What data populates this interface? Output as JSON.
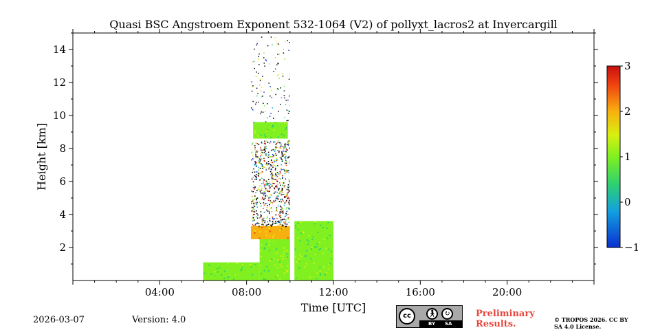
{
  "chart_data": {
    "type": "heatmap",
    "title": "Quasi BSC Angstroem Exponent 532-1064 (V2) of pollyxt_lacros2 at Invercargill",
    "xlabel": "Time [UTC]",
    "ylabel": "Height [km]",
    "xlim": [
      0,
      24
    ],
    "ylim": [
      0,
      15
    ],
    "x_ticks": [
      4,
      8,
      12,
      16,
      20
    ],
    "x_tick_labels": [
      "04:00",
      "08:00",
      "12:00",
      "16:00",
      "20:00"
    ],
    "y_ticks": [
      2,
      4,
      6,
      8,
      10,
      12,
      14
    ],
    "y_tick_labels": [
      "2",
      "4",
      "6",
      "8",
      "10",
      "12",
      "14"
    ],
    "colorbar": {
      "range": [
        -1,
        3
      ],
      "ticks": [
        -1,
        0,
        1,
        2,
        3
      ],
      "tick_labels": [
        "−1",
        "0",
        "1",
        "2",
        "3"
      ],
      "colormap": "jet",
      "colors": [
        "#0a30d0",
        "#13a0e0",
        "#2fd070",
        "#80f020",
        "#d8f010",
        "#f8b010",
        "#f04010",
        "#c81010"
      ]
    },
    "regions": [
      {
        "time_start": 6.0,
        "time_end": 8.6,
        "height_bottom": 0.0,
        "height_top": 1.1,
        "mean_angstrom": 0.6
      },
      {
        "time_start": 8.6,
        "time_end": 10.2,
        "height_bottom": 0.0,
        "height_top": 2.5,
        "mean_angstrom": 0.8
      },
      {
        "time_start": 8.2,
        "time_end": 10.0,
        "height_bottom": 2.5,
        "height_top": 3.3,
        "mean_angstrom": 1.6
      },
      {
        "time_start": 10.2,
        "time_end": 12.0,
        "height_bottom": 0.0,
        "height_top": 3.6,
        "mean_angstrom": 0.7
      },
      {
        "time_start": 8.2,
        "time_end": 10.0,
        "height_bottom": 3.3,
        "height_top": 8.5,
        "mean_angstrom": 1.0,
        "note": "sparse noisy pixels"
      },
      {
        "time_start": 8.3,
        "time_end": 9.9,
        "height_bottom": 8.6,
        "height_top": 9.6,
        "mean_angstrom": 0.7,
        "note": "cirrus layer"
      }
    ],
    "data_gaps": [
      [
        10.0,
        10.2
      ]
    ]
  },
  "footer": {
    "date": "2026-03-07",
    "version": "Version: 4.0",
    "preliminary": "Preliminary Results.",
    "copyright": "© TROPOS 2026. CC BY SA 4.0 License.",
    "license_badge": {
      "cc": "cc",
      "by": "BY",
      "sa": "SA"
    }
  }
}
